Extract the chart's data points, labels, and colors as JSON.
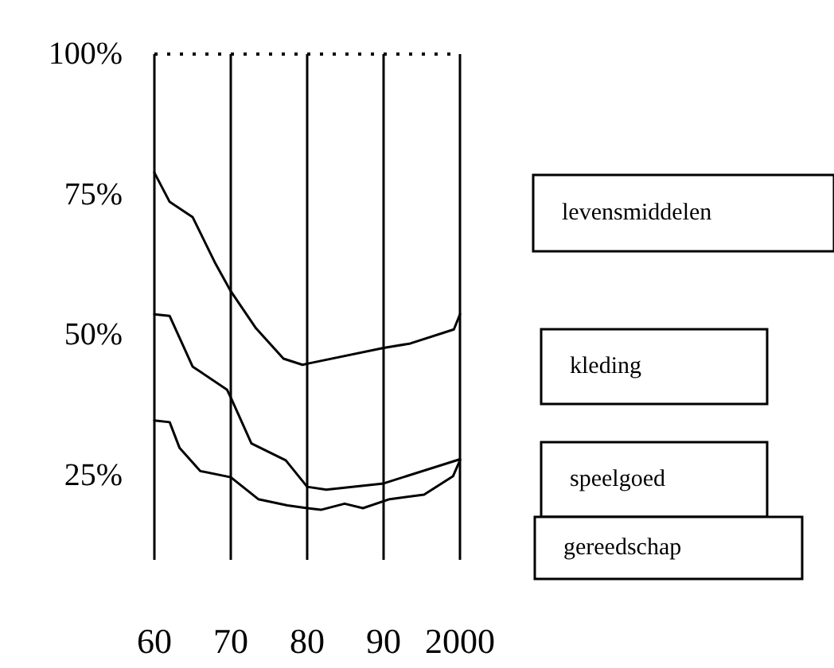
{
  "chart_data": {
    "type": "line",
    "xlim": [
      1960,
      2000
    ],
    "xticks": [
      {
        "value": 1960,
        "label": "60"
      },
      {
        "value": 1970,
        "label": "70"
      },
      {
        "value": 1980,
        "label": "80"
      },
      {
        "value": 1990,
        "label": "90"
      },
      {
        "value": 2000,
        "label": "2000"
      }
    ],
    "ylim": [
      10,
      100
    ],
    "yticks": [
      {
        "value": 25,
        "label": "25%"
      },
      {
        "value": 50,
        "label": "50%"
      },
      {
        "value": 75,
        "label": "75%"
      },
      {
        "value": 100,
        "label": "100%"
      }
    ],
    "grid": "x",
    "marker": "none",
    "line_style": "solid",
    "ref_lines": [
      {
        "axis": "y",
        "value": 100,
        "line_style": "dotted",
        "color": "#000000"
      }
    ],
    "annotations": [
      "levensmiddelen",
      "kleding",
      "speelgoed",
      "gereedschap"
    ],
    "series": [
      {
        "color": "#000000",
        "x": [
          1960,
          1962,
          1965,
          1968,
          1970,
          1973.3,
          1976.9,
          1979.4,
          1980,
          1990,
          1993.5,
          1999.2,
          2000
        ],
        "values": [
          78.9,
          73.7,
          71,
          62.7,
          57.8,
          51.2,
          45.8,
          44.7,
          44.9,
          47.7,
          48.5,
          51,
          53.7
        ]
      },
      {
        "color": "#000000",
        "x": [
          1960,
          1962,
          1965,
          1969.5,
          1970,
          1972.7,
          1977.2,
          1980,
          1982.5,
          1990,
          2000
        ],
        "values": [
          53.7,
          53.4,
          44.4,
          40.3,
          38.9,
          30.7,
          27.7,
          23,
          22.5,
          23.6,
          27.9
        ]
      },
      {
        "color": "#000000",
        "x": [
          1960,
          1962,
          1963.3,
          1966,
          1970,
          1973.6,
          1977.4,
          1980,
          1981.8,
          1984.9,
          1987.3,
          1990.8,
          1995.3,
          1999.1,
          2000
        ],
        "values": [
          34.8,
          34.5,
          29.9,
          25.8,
          24.7,
          20.8,
          19.7,
          19.2,
          18.9,
          20,
          19.2,
          20.8,
          21.6,
          24.9,
          27.7
        ]
      }
    ]
  }
}
